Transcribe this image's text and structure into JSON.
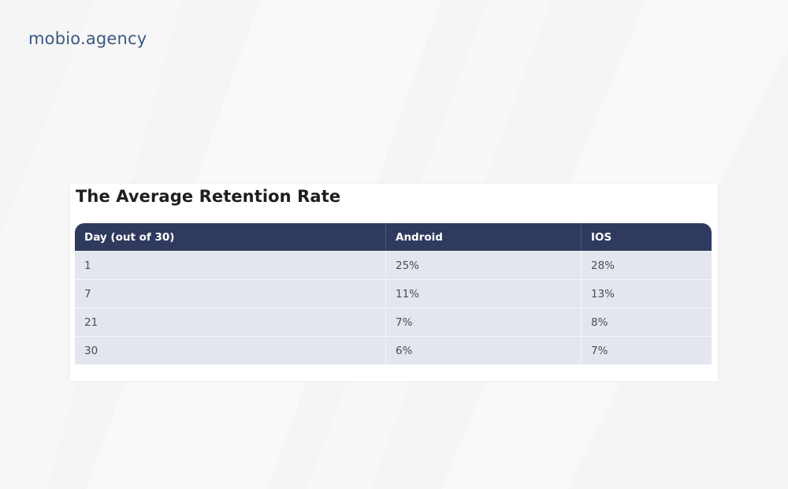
{
  "brand": {
    "label": "mobio.agency"
  },
  "card": {
    "title": "The Average Retention Rate",
    "table": {
      "headers": [
        "Day (out of 30)",
        "Android",
        "IOS"
      ],
      "rows": [
        [
          "1",
          "25%",
          "28%"
        ],
        [
          "7",
          "11%",
          "13%"
        ],
        [
          "21",
          "7%",
          "8%"
        ],
        [
          "30",
          "6%",
          "7%"
        ]
      ]
    }
  },
  "colors": {
    "background": "#f5f5f6",
    "brand_text": "#3b5a7e",
    "header_bg": "#2f3a5e",
    "row_bg": "#e3e6ef"
  }
}
